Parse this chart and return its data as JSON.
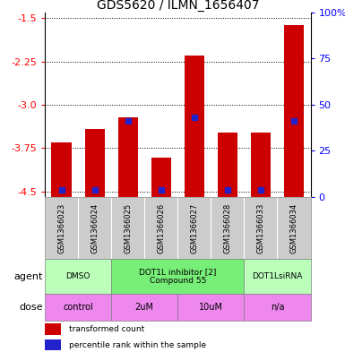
{
  "title": "GDS5620 / ILMN_1656407",
  "samples": [
    "GSM1366023",
    "GSM1366024",
    "GSM1366025",
    "GSM1366026",
    "GSM1366027",
    "GSM1366028",
    "GSM1366033",
    "GSM1366034"
  ],
  "red_values": [
    -3.65,
    -3.42,
    -3.22,
    -3.92,
    -2.15,
    -3.48,
    -3.48,
    -1.62
  ],
  "blue_values": [
    -4.48,
    -4.48,
    -3.28,
    -4.47,
    -3.22,
    -4.47,
    -4.47,
    -3.28
  ],
  "blue_marker_size": 4,
  "ylim_left": [
    -4.6,
    -1.4
  ],
  "yticks_left": [
    -4.5,
    -3.75,
    -3.0,
    -2.25,
    -1.5
  ],
  "yticks_right": [
    0,
    25,
    50,
    75,
    100
  ],
  "y_right_labels": [
    "0",
    "25",
    "50",
    "75",
    "100%"
  ],
  "bar_color": "#cc0000",
  "blue_color": "#2222cc",
  "bar_width": 0.6,
  "agent_spans": [
    {
      "label": "DMSO",
      "start": 0,
      "end": 2,
      "color": "#bbffbb"
    },
    {
      "label": "DOT1L inhibitor [2]\nCompound 55",
      "start": 2,
      "end": 6,
      "color": "#77ee77"
    },
    {
      "label": "DOT1LsiRNA",
      "start": 6,
      "end": 8,
      "color": "#bbffbb"
    }
  ],
  "dose_spans": [
    {
      "label": "control",
      "start": 0,
      "end": 2,
      "color": "#ee88ee"
    },
    {
      "label": "2uM",
      "start": 2,
      "end": 4,
      "color": "#ee88ee"
    },
    {
      "label": "10uM",
      "start": 4,
      "end": 6,
      "color": "#ee88ee"
    },
    {
      "label": "n/a",
      "start": 6,
      "end": 8,
      "color": "#ee88ee"
    }
  ],
  "legend_red": "transformed count",
  "legend_blue": "percentile rank within the sample",
  "agent_label": "agent",
  "dose_label": "dose",
  "sample_bg_color": "#cccccc",
  "sample_line_color": "#ffffff"
}
